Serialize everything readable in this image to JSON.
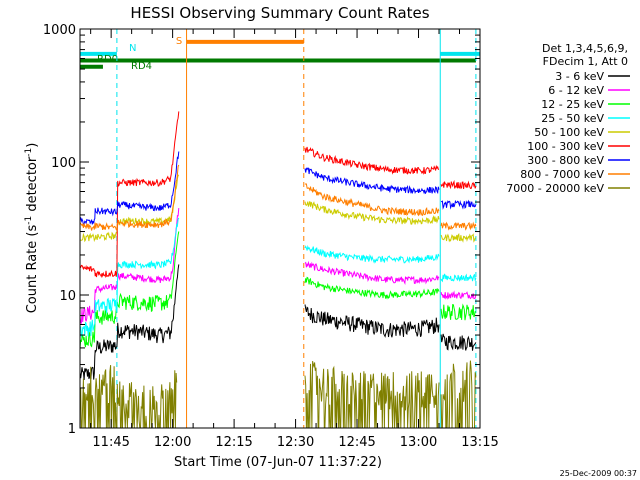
{
  "chart_data": {
    "type": "line",
    "title": "HESSI Observing Summary Count Rates",
    "xlabel": "Start Time (07-Jun-07 11:37:22)",
    "ylabel_main": "Count Rate (s",
    "ylabel_sup1": "-1",
    "ylabel_mid": " detector",
    "ylabel_sup2": "-1",
    "ylabel_end": ")",
    "yscale": "log",
    "ylim": [
      1,
      1000
    ],
    "xlim": [
      697.4,
      795.0
    ],
    "x_unit": "minutes since 00:00 UT",
    "x_ticks": [
      {
        "value": 705,
        "label": "11:45"
      },
      {
        "value": 720,
        "label": "12:00"
      },
      {
        "value": 735,
        "label": "12:15"
      },
      {
        "value": 750,
        "label": "12:30"
      },
      {
        "value": 765,
        "label": "12:45"
      },
      {
        "value": 780,
        "label": "13:00"
      },
      {
        "value": 795,
        "label": "13:15"
      }
    ],
    "y_ticks": [
      {
        "value": 1,
        "label": "1"
      },
      {
        "value": 10,
        "label": "10"
      },
      {
        "value": 100,
        "label": "100"
      },
      {
        "value": 1000,
        "label": "1000"
      }
    ],
    "legend_header": [
      "Det 1,3,4,5,6,9,",
      "FDecim 1, Att 0"
    ],
    "legend_position": "right",
    "timestamp": "25-Dec-2009 00:37",
    "flag_labels": {
      "N": "N",
      "RD0": "RD0",
      "RD4": "RD4",
      "S": "S"
    },
    "flags": [
      {
        "label": "N",
        "color": "#00e5ee",
        "y": 650,
        "segments": [
          [
            697.4,
            706.4
          ],
          [
            785.3,
            795.0
          ]
        ]
      },
      {
        "label": "RD0",
        "color": "#007a00",
        "y": 580,
        "segments": [
          [
            697.4,
            794.0
          ]
        ]
      },
      {
        "label": "RD4",
        "color": "#007a00",
        "y": 520,
        "segments": [
          [
            697.4,
            703.0
          ]
        ]
      },
      {
        "label": "S",
        "color": "#ff7f00",
        "y": 800,
        "segments": [
          [
            723.4,
            752.0
          ]
        ]
      }
    ],
    "vertical_markers": [
      {
        "x": 706.4,
        "color": "#00e5ee",
        "style": "dashed"
      },
      {
        "x": 723.4,
        "color": "#ff7f00",
        "style": "solid"
      },
      {
        "x": 752.0,
        "color": "#ff7f00",
        "style": "dashed"
      },
      {
        "x": 785.3,
        "color": "#00e5ee",
        "style": "solid"
      },
      {
        "x": 794.0,
        "color": "#00e5ee",
        "style": "dashed"
      }
    ],
    "series": [
      {
        "name": "3 - 6 keV",
        "color": "#000000",
        "points": [
          [
            697.4,
            2.5
          ],
          [
            700.9,
            2.6
          ],
          [
            701.1,
            4.0
          ],
          [
            706.4,
            4.2
          ],
          [
            706.6,
            5.5
          ],
          [
            712,
            5.3
          ],
          [
            717,
            5.0
          ],
          [
            719.5,
            5.2
          ],
          [
            720.2,
            7
          ],
          [
            721,
            13
          ],
          [
            721.5,
            17
          ],
          [
            752.0,
            null
          ],
          [
            752.3,
            7.5
          ],
          [
            757,
            6.6
          ],
          [
            765,
            6.0
          ],
          [
            772,
            5.5
          ],
          [
            780,
            5.6
          ],
          [
            783,
            5.8
          ],
          [
            785,
            6.0
          ],
          [
            785.3,
            null
          ],
          [
            785.5,
            4.5
          ],
          [
            794,
            4.4
          ]
        ]
      },
      {
        "name": "6 - 12 keV",
        "color": "#ff00ff",
        "points": [
          [
            697.4,
            7
          ],
          [
            700.9,
            7.5
          ],
          [
            701.1,
            11
          ],
          [
            706.4,
            11.5
          ],
          [
            706.6,
            14
          ],
          [
            712,
            13.5
          ],
          [
            717,
            13
          ],
          [
            719.5,
            13.5
          ],
          [
            720.2,
            17
          ],
          [
            721,
            35
          ],
          [
            721.5,
            45
          ],
          [
            752.0,
            null
          ],
          [
            752.3,
            17
          ],
          [
            757,
            15.5
          ],
          [
            765,
            14
          ],
          [
            772,
            13
          ],
          [
            780,
            13
          ],
          [
            783,
            13.2
          ],
          [
            785,
            13.5
          ],
          [
            785.3,
            null
          ],
          [
            785.5,
            10
          ],
          [
            794,
            10
          ]
        ]
      },
      {
        "name": "12 - 25 keV",
        "color": "#00ff00",
        "points": [
          [
            697.4,
            4.5
          ],
          [
            700.9,
            4.8
          ],
          [
            701.1,
            6.8
          ],
          [
            706.4,
            7
          ],
          [
            706.6,
            9
          ],
          [
            712,
            8.8
          ],
          [
            717,
            8.7
          ],
          [
            719.5,
            9
          ],
          [
            720.2,
            13
          ],
          [
            721,
            24
          ],
          [
            721.5,
            30
          ],
          [
            752.0,
            null
          ],
          [
            752.3,
            13
          ],
          [
            757,
            11.5
          ],
          [
            765,
            10.5
          ],
          [
            772,
            10
          ],
          [
            780,
            10.2
          ],
          [
            783,
            10.4
          ],
          [
            785,
            10.6
          ],
          [
            785.3,
            null
          ],
          [
            785.5,
            7.5
          ],
          [
            794,
            7.5
          ]
        ]
      },
      {
        "name": "25 - 50 keV",
        "color": "#00ffff",
        "points": [
          [
            697.4,
            5.5
          ],
          [
            700.9,
            5.8
          ],
          [
            701.1,
            8.2
          ],
          [
            706.4,
            8.5
          ],
          [
            706.6,
            17
          ],
          [
            712,
            17
          ],
          [
            717,
            16.8
          ],
          [
            719.5,
            17.5
          ],
          [
            720.2,
            22
          ],
          [
            721,
            33
          ],
          [
            721.5,
            38
          ],
          [
            752.0,
            null
          ],
          [
            752.3,
            23
          ],
          [
            757,
            20.5
          ],
          [
            765,
            19
          ],
          [
            772,
            18.5
          ],
          [
            780,
            18.6
          ],
          [
            783,
            19
          ],
          [
            785,
            19.5
          ],
          [
            785.3,
            null
          ],
          [
            785.5,
            13.5
          ],
          [
            794,
            13.5
          ]
        ]
      },
      {
        "name": "50 - 100 keV",
        "color": "#cccc00",
        "points": [
          [
            697.4,
            27
          ],
          [
            700.9,
            27
          ],
          [
            701.1,
            27
          ],
          [
            706.4,
            28
          ],
          [
            706.6,
            36
          ],
          [
            712,
            36
          ],
          [
            717,
            35.5
          ],
          [
            719.5,
            37
          ],
          [
            720.2,
            45
          ],
          [
            721,
            70
          ],
          [
            721.5,
            80
          ],
          [
            752.0,
            null
          ],
          [
            752.3,
            50
          ],
          [
            757,
            44
          ],
          [
            765,
            39
          ],
          [
            772,
            36.5
          ],
          [
            780,
            36
          ],
          [
            783,
            36.5
          ],
          [
            785,
            37
          ],
          [
            785.3,
            null
          ],
          [
            785.5,
            27
          ],
          [
            794,
            27
          ]
        ]
      },
      {
        "name": "100 - 300 keV",
        "color": "#ff0000",
        "points": [
          [
            697.4,
            16
          ],
          [
            700.9,
            15.5
          ],
          [
            701.1,
            14.5
          ],
          [
            706.4,
            14.5
          ],
          [
            706.6,
            70
          ],
          [
            712,
            70
          ],
          [
            717,
            70
          ],
          [
            719.5,
            75
          ],
          [
            720.2,
            110
          ],
          [
            721,
            180
          ],
          [
            721.5,
            240
          ],
          [
            752.0,
            null
          ],
          [
            752.3,
            125
          ],
          [
            757,
            108
          ],
          [
            765,
            95
          ],
          [
            772,
            88
          ],
          [
            780,
            86
          ],
          [
            783,
            87
          ],
          [
            785,
            88
          ],
          [
            785.3,
            null
          ],
          [
            785.5,
            68
          ],
          [
            794,
            66
          ]
        ]
      },
      {
        "name": "300 - 800 keV",
        "color": "#0000ff",
        "points": [
          [
            697.4,
            36
          ],
          [
            700.9,
            35
          ],
          [
            701.1,
            43
          ],
          [
            706.4,
            42
          ],
          [
            706.6,
            48
          ],
          [
            712,
            46
          ],
          [
            717,
            45
          ],
          [
            719.5,
            48
          ],
          [
            720.2,
            62
          ],
          [
            721,
            95
          ],
          [
            721.5,
            120
          ],
          [
            752.0,
            null
          ],
          [
            752.3,
            88
          ],
          [
            757,
            76
          ],
          [
            765,
            68
          ],
          [
            772,
            63
          ],
          [
            780,
            61
          ],
          [
            783,
            61.5
          ],
          [
            785,
            62
          ],
          [
            785.3,
            null
          ],
          [
            785.5,
            48
          ],
          [
            794,
            48
          ]
        ]
      },
      {
        "name": "800 - 7000 keV",
        "color": "#ff7f00",
        "points": [
          [
            697.4,
            33
          ],
          [
            700.9,
            32
          ],
          [
            701.1,
            33
          ],
          [
            706.4,
            32
          ],
          [
            706.6,
            35
          ],
          [
            712,
            34
          ],
          [
            717,
            34
          ],
          [
            719.5,
            36
          ],
          [
            720.2,
            46
          ],
          [
            721,
            75
          ],
          [
            721.5,
            95
          ],
          [
            752.0,
            null
          ],
          [
            752.3,
            66
          ],
          [
            757,
            55
          ],
          [
            765,
            48
          ],
          [
            772,
            43
          ],
          [
            780,
            42
          ],
          [
            783,
            42.5
          ],
          [
            785,
            43
          ],
          [
            785.3,
            null
          ],
          [
            785.5,
            33
          ],
          [
            794,
            33
          ]
        ]
      },
      {
        "name": "7000 - 20000 keV",
        "color": "#808000",
        "points": [
          [
            697.4,
            2.2
          ],
          [
            701,
            2.2
          ],
          [
            704,
            2.3
          ],
          [
            706.4,
            2.2
          ],
          [
            706.6,
            1.8
          ],
          [
            712,
            1.6
          ],
          [
            717,
            1.6
          ],
          [
            719.5,
            1.7
          ],
          [
            720.2,
            1.9
          ],
          [
            721,
            2.2
          ],
          [
            752.0,
            null
          ],
          [
            752.3,
            2.5
          ],
          [
            757,
            2.2
          ],
          [
            765,
            2.0
          ],
          [
            772,
            2.0
          ],
          [
            780,
            2.0
          ],
          [
            783,
            2.1
          ],
          [
            785,
            2.2
          ],
          [
            785.3,
            null
          ],
          [
            785.5,
            2.4
          ],
          [
            794,
            2.4
          ]
        ]
      }
    ]
  }
}
